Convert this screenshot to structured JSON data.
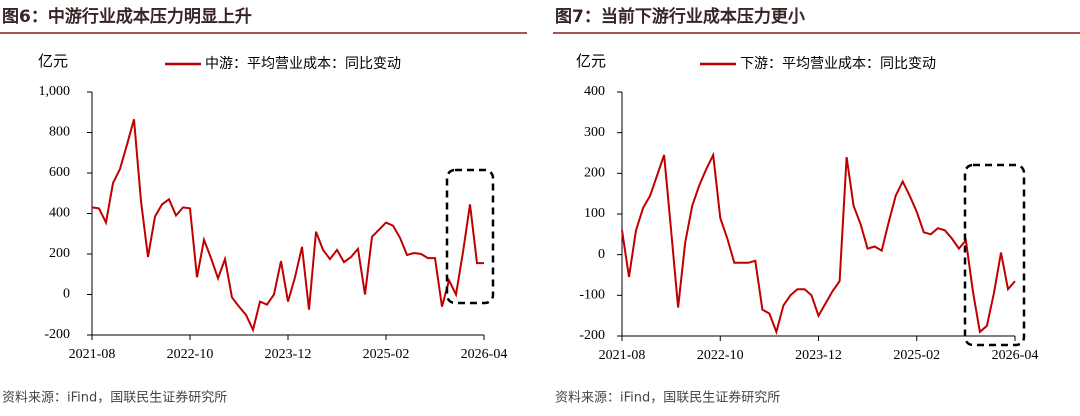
{
  "chart_data": [
    {
      "type": "line",
      "title": "图6：中游行业成本压力明显上升",
      "y_unit": "亿元",
      "source": "资料来源：iFind，国联民生证券研究所",
      "categories": [
        "2021-08",
        null,
        null,
        null,
        null,
        null,
        null,
        null,
        null,
        null,
        null,
        null,
        null,
        null,
        "2022-10",
        null,
        null,
        null,
        null,
        null,
        null,
        null,
        null,
        null,
        null,
        null,
        null,
        null,
        "2023-12",
        null,
        null,
        null,
        null,
        null,
        null,
        null,
        null,
        null,
        null,
        null,
        null,
        null,
        "2025-02",
        null,
        null,
        null,
        null,
        null,
        null,
        null,
        null,
        null,
        null,
        null,
        null,
        null,
        "2026-04"
      ],
      "series": [
        {
          "name": "中游：平均营业成本：同比变动",
          "color": "#c00000",
          "values": [
            430,
            425,
            355,
            550,
            620,
            740,
            865,
            460,
            185,
            385,
            445,
            470,
            390,
            430,
            425,
            85,
            270,
            180,
            80,
            175,
            -15,
            -60,
            -100,
            -175,
            -35,
            -50,
            0,
            165,
            -35,
            85,
            235,
            -75,
            310,
            220,
            175,
            220,
            160,
            185,
            225,
            0,
            285,
            320,
            355,
            340,
            280,
            195,
            205,
            200,
            180,
            180,
            -60,
            70,
            0,
            210,
            445,
            155,
            155
          ]
        }
      ],
      "ylim": [
        -200,
        1000
      ],
      "yticks": [
        -200,
        0,
        200,
        400,
        600,
        800,
        {
          "value": 1000,
          "label": "1,000"
        }
      ]
    },
    {
      "type": "line",
      "title": "图7：当前下游行业成本压力更小",
      "y_unit": "亿元",
      "source": "资料来源：iFind，国联民生证券研究所",
      "categories": [
        "2021-08",
        null,
        null,
        null,
        null,
        null,
        null,
        null,
        null,
        null,
        null,
        null,
        null,
        null,
        "2022-10",
        null,
        null,
        null,
        null,
        null,
        null,
        null,
        null,
        null,
        null,
        null,
        null,
        null,
        "2023-12",
        null,
        null,
        null,
        null,
        null,
        null,
        null,
        null,
        null,
        null,
        null,
        null,
        null,
        "2025-02",
        null,
        null,
        null,
        null,
        null,
        null,
        null,
        null,
        null,
        null,
        null,
        null,
        null,
        "2026-04"
      ],
      "series": [
        {
          "name": "下游：平均营业成本：同比变动",
          "color": "#c00000",
          "values": [
            60,
            -55,
            60,
            115,
            145,
            195,
            245,
            60,
            -130,
            30,
            120,
            170,
            210,
            245,
            90,
            40,
            -20,
            -20,
            -20,
            -15,
            -135,
            -145,
            -190,
            -125,
            -100,
            -85,
            -85,
            -100,
            -150,
            -120,
            -90,
            -65,
            240,
            120,
            75,
            15,
            20,
            10,
            80,
            145,
            180,
            145,
            105,
            55,
            50,
            65,
            60,
            40,
            15,
            35,
            -90,
            -190,
            -175,
            -95,
            5,
            -85,
            -65
          ]
        }
      ],
      "ylim": [
        -200,
        400
      ],
      "yticks": [
        -200,
        -100,
        0,
        100,
        200,
        300,
        400
      ]
    }
  ]
}
